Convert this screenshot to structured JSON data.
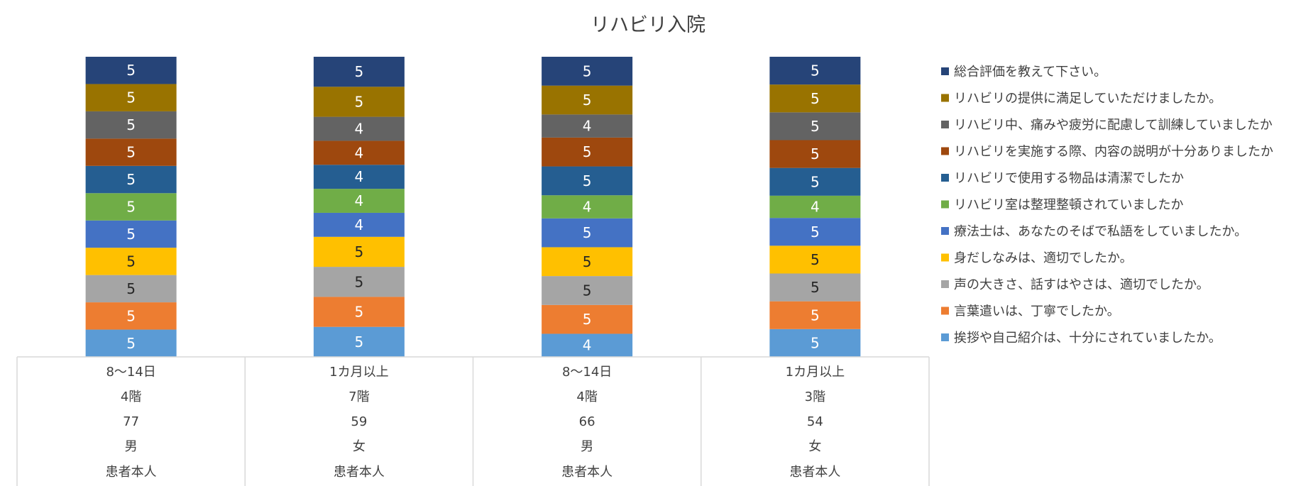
{
  "chart_data": {
    "type": "bar",
    "stacked": true,
    "title": "リハビリ入院",
    "categories": [
      [
        "8～14日",
        "4階",
        "77",
        "男",
        "患者本人"
      ],
      [
        "1カ月以上",
        "7階",
        "59",
        "女",
        "患者本人"
      ],
      [
        "8～14日",
        "4階",
        "66",
        "男",
        "患者本人"
      ],
      [
        "1カ月以上",
        "3階",
        "54",
        "女",
        "患者本人"
      ]
    ],
    "legend_position": "right",
    "grid": false,
    "series": [
      {
        "name": "挨拶や自己紹介は、十分にされていましたか。",
        "color": "#5b9bd5",
        "label_color": "#ffffff",
        "values": [
          5,
          5,
          4,
          5
        ]
      },
      {
        "name": "言葉遣いは、丁寧でしたか。",
        "color": "#ed7d31",
        "label_color": "#ffffff",
        "values": [
          5,
          5,
          5,
          5
        ]
      },
      {
        "name": "声の大きさ、話すはやさは、適切でしたか。",
        "color": "#a5a5a5",
        "label_color": "#262626",
        "values": [
          5,
          5,
          5,
          5
        ]
      },
      {
        "name": "身だしなみは、適切でしたか。",
        "color": "#ffc000",
        "label_color": "#262626",
        "values": [
          5,
          5,
          5,
          5
        ]
      },
      {
        "name": "療法士は、あなたのそばで私語をしていましたか。",
        "color": "#4472c4",
        "label_color": "#ffffff",
        "values": [
          5,
          4,
          5,
          5
        ]
      },
      {
        "name": "リハビリ室は整理整頓されていましたか",
        "color": "#70ad47",
        "label_color": "#ffffff",
        "values": [
          5,
          4,
          4,
          4
        ]
      },
      {
        "name": "リハビリで使用する物品は清潔でしたか",
        "color": "#255e91",
        "label_color": "#ffffff",
        "values": [
          5,
          4,
          5,
          5
        ]
      },
      {
        "name": "リハビリを実施する際、内容の説明が十分ありましたか",
        "color": "#9e480e",
        "label_color": "#ffffff",
        "values": [
          5,
          4,
          5,
          5
        ]
      },
      {
        "name": "リハビリ中、痛みや疲労に配慮して訓練していましたか",
        "color": "#636363",
        "label_color": "#ffffff",
        "values": [
          5,
          4,
          4,
          5
        ]
      },
      {
        "name": "リハビリの提供に満足していただけましたか。",
        "color": "#997300",
        "label_color": "#ffffff",
        "values": [
          5,
          5,
          5,
          5
        ]
      },
      {
        "name": "総合評価を教えて下さい。",
        "color": "#264478",
        "label_color": "#ffffff",
        "values": [
          5,
          5,
          5,
          5
        ]
      }
    ]
  }
}
